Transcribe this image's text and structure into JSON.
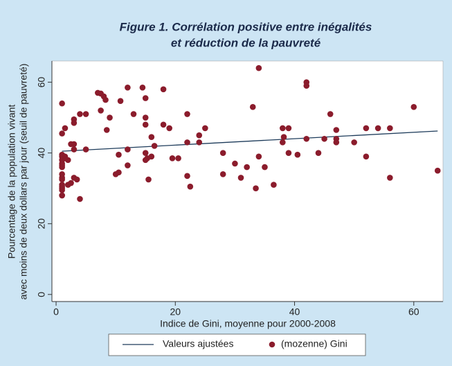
{
  "chart_data": {
    "type": "scatter",
    "title": [
      "Figure 1. Corrélation positive entre inégalités",
      "et réduction de la pauvreté"
    ],
    "x_label": "Indice de Gini, moyenne pour 2000-2008",
    "y_label": [
      "Pourcentage de la population vivant",
      "avec moins de deux dollars par jour (seuil de pauvreté)"
    ],
    "xlim": [
      -0.7,
      64.9
    ],
    "ylim": [
      -2,
      66
    ],
    "xticks": [
      0,
      20,
      40,
      60
    ],
    "yticks": [
      0,
      20,
      40,
      60
    ],
    "grid": false,
    "legend": "bottom",
    "series": [
      {
        "name": "Valeurs ajustées",
        "type": "line",
        "color": "#1d3b5a",
        "x": [
          1,
          64
        ],
        "values": [
          40.5,
          46.2
        ]
      },
      {
        "name": "(mozenne) Gini",
        "type": "scatter",
        "color": "#8b1c2c",
        "x": [
          1,
          1,
          1,
          1,
          1,
          1,
          1,
          1,
          1,
          1,
          1,
          1,
          1,
          1,
          1,
          1,
          1,
          1.5,
          1.5,
          1.5,
          2,
          2,
          2.5,
          2.5,
          3,
          3,
          3,
          3,
          3,
          3.5,
          4,
          4,
          5,
          5,
          7,
          7.5,
          7.5,
          8,
          8.3,
          8.5,
          9,
          10,
          10.5,
          10.5,
          10.8,
          12,
          12,
          12,
          13,
          14.5,
          15,
          15,
          15,
          15,
          15,
          15.3,
          15.5,
          16,
          16,
          16.5,
          18,
          18,
          19,
          19.5,
          20.5,
          22,
          22,
          22,
          22.5,
          24,
          24,
          25,
          28,
          28,
          30,
          31,
          32,
          33,
          33.5,
          34,
          34,
          35,
          36.5,
          38,
          38,
          38.2,
          39,
          39,
          40.5,
          42,
          42,
          42,
          44,
          45,
          46,
          47,
          47,
          47,
          50,
          52,
          52,
          54,
          56,
          56,
          60,
          64
        ],
        "values": [
          54,
          45.5,
          39.5,
          39,
          38,
          37,
          36.5,
          36,
          34,
          33,
          32.5,
          31,
          30.5,
          30,
          29.5,
          28,
          28,
          47,
          39,
          38.5,
          38,
          31,
          42.5,
          31.5,
          42.5,
          41,
          49.5,
          48.5,
          33,
          32.5,
          51,
          27,
          51,
          41,
          57,
          56.8,
          52,
          56,
          55,
          46.5,
          50,
          34,
          39.5,
          34.5,
          54.7,
          58.5,
          41,
          36.5,
          51,
          58.5,
          55.5,
          50,
          48,
          40,
          38,
          38.5,
          32.5,
          39,
          44.5,
          42,
          58,
          48,
          47,
          38.5,
          38.5,
          51,
          43,
          33.5,
          30.5,
          45,
          43,
          47,
          40,
          34,
          37,
          33,
          36,
          53,
          30,
          64,
          39,
          36,
          31,
          47,
          43,
          44.5,
          47,
          40,
          39.5,
          60,
          59,
          44,
          40,
          44,
          51,
          46.5,
          44,
          43,
          43,
          47,
          39,
          47,
          47,
          33,
          53,
          35
        ]
      }
    ]
  }
}
